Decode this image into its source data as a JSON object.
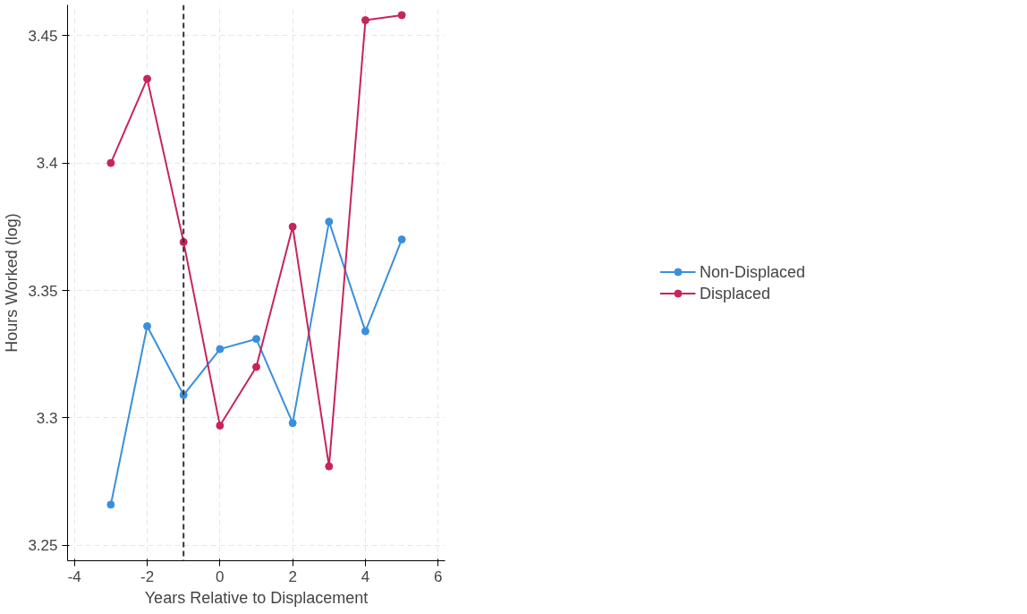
{
  "chart_data": {
    "type": "line",
    "xlabel": "Years Relative to Displacement",
    "ylabel": "Hours Worked (log)",
    "x": [
      -3,
      -2,
      -1,
      0,
      1,
      2,
      3,
      4,
      5
    ],
    "series": [
      {
        "name": "Non-Displaced",
        "color": "#3a8fdc",
        "values": [
          3.266,
          3.336,
          3.309,
          3.327,
          3.331,
          3.298,
          3.377,
          3.334,
          3.37
        ]
      },
      {
        "name": "Displaced",
        "color": "#c8245c",
        "values": [
          3.4,
          3.433,
          3.369,
          3.297,
          3.32,
          3.375,
          3.281,
          3.456,
          3.458
        ]
      }
    ],
    "xlim": [
      -4.19,
      6.19
    ],
    "ylim": [
      3.244,
      3.462
    ],
    "xticks": [
      -4,
      -2,
      0,
      2,
      4,
      6
    ],
    "yticks": [
      3.25,
      3.3,
      3.35,
      3.4,
      3.45
    ],
    "ref_lines": [
      {
        "axis": "x",
        "value": -1,
        "color": "#333333",
        "line_style": "dashed"
      }
    ],
    "grid": true,
    "legend": "right",
    "marker": "circle",
    "line_style": "solid"
  }
}
